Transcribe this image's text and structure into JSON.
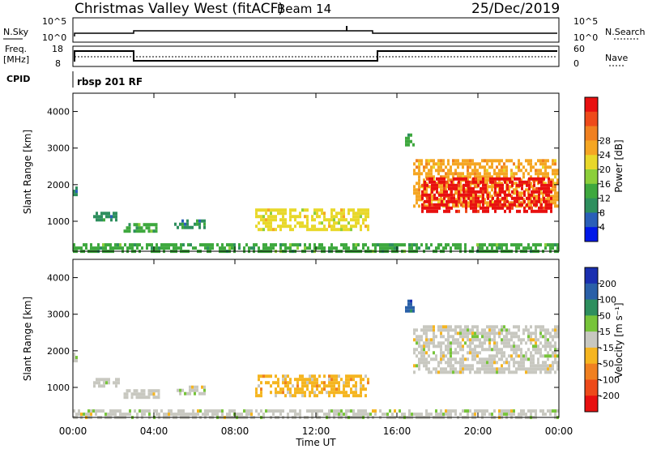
{
  "header": {
    "station": "Christmas Valley West (fitACF)",
    "beam": "Beam 14",
    "date": "25/Dec/2019"
  },
  "strips": {
    "nsky_label": "N.Sky",
    "nsky_ticks": [
      "10^5",
      "10^0"
    ],
    "nsearch_label": "N.Search",
    "nsearch_ticks": [
      "10^5",
      "10^0"
    ],
    "freq_label_1": "Freq.",
    "freq_label_2": "[MHz]",
    "freq_ticks": [
      "18",
      "8"
    ],
    "nave_label": "Nave",
    "nave_ticks": [
      "60",
      "0"
    ],
    "cpid_label": "CPID",
    "cpid_text": "rbsp 201 RF"
  },
  "axes": {
    "xlabel": "Time UT",
    "ylabel": "Slant Range [km]",
    "x_ticks": [
      "00:00",
      "04:00",
      "08:00",
      "12:00",
      "16:00",
      "20:00",
      "00:00"
    ],
    "y_ticks": [
      "1000",
      "2000",
      "3000",
      "4000"
    ]
  },
  "power_scale": {
    "title": "Power [dB]",
    "ticks": [
      "4",
      "8",
      "12",
      "16",
      "20",
      "24",
      "28"
    ],
    "colors": [
      "#0018e8",
      "#2a5fb8",
      "#2e8f5e",
      "#3ea83e",
      "#8ccf3a",
      "#e8d82a",
      "#f5a623",
      "#f08020",
      "#ee4a1a",
      "#e81010"
    ]
  },
  "velocity_scale": {
    "title": "Velocity [m s⁻¹]",
    "ticks": [
      "200",
      "100",
      "50",
      "15",
      "-15",
      "-50",
      "-100",
      "-200"
    ],
    "colors": [
      "#1a2fb0",
      "#2a60a8",
      "#2e8f5e",
      "#77c43a",
      "#c8c8c0",
      "#f5b520",
      "#f08020",
      "#ee4a1a",
      "#e81010"
    ]
  },
  "chart_data": [
    {
      "type": "heatmap",
      "title": "",
      "xlabel": "Time UT",
      "ylabel": "Slant Range [km]",
      "xlim": [
        0,
        24
      ],
      "ylim": [
        180,
        4500
      ],
      "colorbar": "Power [dB]",
      "colorbar_range": [
        0,
        30
      ],
      "regions": [
        {
          "time": [
            0.0,
            24.0
          ],
          "range": [
            200,
            400
          ],
          "value": 10
        },
        {
          "time": [
            0.0,
            0.2
          ],
          "range": [
            1700,
            1950
          ],
          "value": 8
        },
        {
          "time": [
            1.0,
            2.3
          ],
          "range": [
            1080,
            1260
          ],
          "value": 8
        },
        {
          "time": [
            2.5,
            4.2
          ],
          "range": [
            750,
            950
          ],
          "value": 10
        },
        {
          "time": [
            5.0,
            6.5
          ],
          "range": [
            850,
            1050
          ],
          "value": 8
        },
        {
          "time": [
            9.0,
            14.6
          ],
          "range": [
            800,
            1350
          ],
          "value": 16
        },
        {
          "time": [
            16.4,
            16.8
          ],
          "range": [
            3100,
            3400
          ],
          "value": 10
        },
        {
          "time": [
            16.8,
            24.0
          ],
          "range": [
            1400,
            2700
          ],
          "value": 20
        },
        {
          "time": [
            17.2,
            23.6
          ],
          "range": [
            1300,
            2200
          ],
          "value": 28
        }
      ],
      "range_unit": "km",
      "time_unit": "hours UT"
    },
    {
      "type": "heatmap",
      "title": "",
      "xlabel": "Time UT",
      "ylabel": "Slant Range [km]",
      "xlim": [
        0,
        24
      ],
      "ylim": [
        180,
        4500
      ],
      "colorbar": "Velocity [m s⁻¹]",
      "colorbar_range": [
        -250,
        250
      ],
      "regions": [
        {
          "time": [
            0.0,
            24.0
          ],
          "range": [
            200,
            400
          ],
          "value": 20
        },
        {
          "time": [
            0.0,
            0.2
          ],
          "range": [
            1700,
            1950
          ],
          "value": 0
        },
        {
          "time": [
            1.0,
            2.3
          ],
          "range": [
            1080,
            1260
          ],
          "value": 0
        },
        {
          "time": [
            2.5,
            4.2
          ],
          "range": [
            750,
            950
          ],
          "value": 0
        },
        {
          "time": [
            5.0,
            6.5
          ],
          "range": [
            850,
            1050
          ],
          "value": 0
        },
        {
          "time": [
            9.0,
            14.6
          ],
          "range": [
            800,
            1350
          ],
          "value": -60
        },
        {
          "time": [
            16.4,
            16.8
          ],
          "range": [
            3100,
            3400
          ],
          "value": 150
        },
        {
          "time": [
            16.8,
            24.0
          ],
          "range": [
            1400,
            2700
          ],
          "value": 0
        }
      ],
      "range_unit": "km",
      "time_unit": "hours UT"
    }
  ]
}
